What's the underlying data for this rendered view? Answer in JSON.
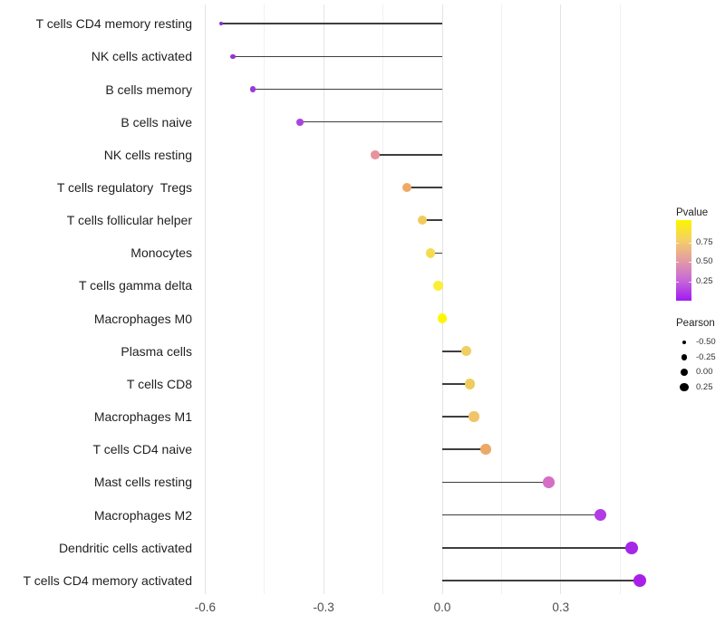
{
  "chart_data": {
    "type": "lollipop",
    "title": "",
    "xlabel": "",
    "ylabel": "",
    "xlim": [
      -0.62,
      0.555
    ],
    "x_ticks": [
      -0.6,
      -0.3,
      0.0,
      0.3
    ],
    "x_tick_labels": [
      "-0.6",
      "-0.3",
      "0.0",
      "0.3"
    ],
    "x_minor_ticks": [
      -0.45,
      -0.15,
      0.15,
      0.45
    ],
    "grid": "vertical-only",
    "stem_origin": 0.0,
    "points": [
      {
        "label": "T cells CD4 memory resting",
        "pearson": -0.56,
        "color": "#8c2bd2"
      },
      {
        "label": "NK cells activated",
        "pearson": -0.53,
        "color": "#9333d6"
      },
      {
        "label": "B cells memory",
        "pearson": -0.48,
        "color": "#9938da"
      },
      {
        "label": "B cells naive",
        "pearson": -0.36,
        "color": "#a845df"
      },
      {
        "label": "NK cells resting",
        "pearson": -0.17,
        "color": "#e8939b"
      },
      {
        "label": "T cells regulatory  Tregs",
        "pearson": -0.09,
        "color": "#f0a965"
      },
      {
        "label": "T cells follicular helper",
        "pearson": -0.05,
        "color": "#f1cb59"
      },
      {
        "label": "Monocytes",
        "pearson": -0.03,
        "color": "#f4dc4e"
      },
      {
        "label": "T cells gamma delta",
        "pearson": -0.01,
        "color": "#faef38"
      },
      {
        "label": "Macrophages M0",
        "pearson": 0.0,
        "color": "#fdf800"
      },
      {
        "label": "Plasma cells",
        "pearson": 0.06,
        "color": "#f0ce62"
      },
      {
        "label": "T cells CD8",
        "pearson": 0.07,
        "color": "#f0cc60"
      },
      {
        "label": "Macrophages M1",
        "pearson": 0.08,
        "color": "#f0c468"
      },
      {
        "label": "T cells CD4 naive",
        "pearson": 0.11,
        "color": "#eba968"
      },
      {
        "label": "Mast cells resting",
        "pearson": 0.27,
        "color": "#d56fc5"
      },
      {
        "label": "Macrophages M2",
        "pearson": 0.4,
        "color": "#b13be4"
      },
      {
        "label": "Dendritic cells activated",
        "pearson": 0.48,
        "color": "#a527e8"
      },
      {
        "label": "T cells CD4 memory activated",
        "pearson": 0.5,
        "color": "#a81fea"
      }
    ],
    "legend_pvalue": {
      "title": "Pvalue",
      "tick_labels": [
        "0.75",
        "0.50",
        "0.25"
      ],
      "gradient_top_to_bottom": [
        "#fbf600",
        "#f5cf66",
        "#e39ca4",
        "#c767d8",
        "#a01bf2"
      ]
    },
    "legend_pearson": {
      "title": "Pearson",
      "items": [
        {
          "label": "-0.50",
          "value": -0.5
        },
        {
          "label": "-0.25",
          "value": -0.25
        },
        {
          "label": "0.00",
          "value": 0.0
        },
        {
          "label": "0.25",
          "value": 0.25
        }
      ]
    }
  }
}
